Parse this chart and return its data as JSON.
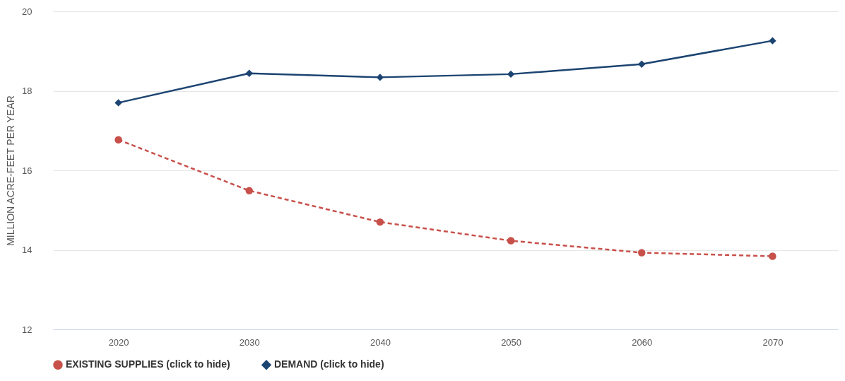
{
  "chart_data": {
    "type": "line",
    "ylabel": "MILLION ACRE-FEET PER YEAR",
    "categories": [
      "2020",
      "2030",
      "2040",
      "2050",
      "2060",
      "2070"
    ],
    "series": [
      {
        "name": "EXISTING SUPPLIES (click to hide)",
        "color": "#c8504a",
        "marker": "circle",
        "line_style": "dashed",
        "values": [
          16.77,
          15.49,
          14.7,
          14.23,
          13.93,
          13.84
        ]
      },
      {
        "name": "DEMAND (click to hide)",
        "color": "#1c4471",
        "marker": "diamond",
        "line_style": "solid",
        "values": [
          17.7,
          18.44,
          18.34,
          18.42,
          18.67,
          19.26
        ]
      }
    ],
    "ylim": [
      12,
      20
    ],
    "yticks": [
      12,
      14,
      16,
      18,
      20
    ],
    "grid": "y",
    "legend": "bottom"
  }
}
